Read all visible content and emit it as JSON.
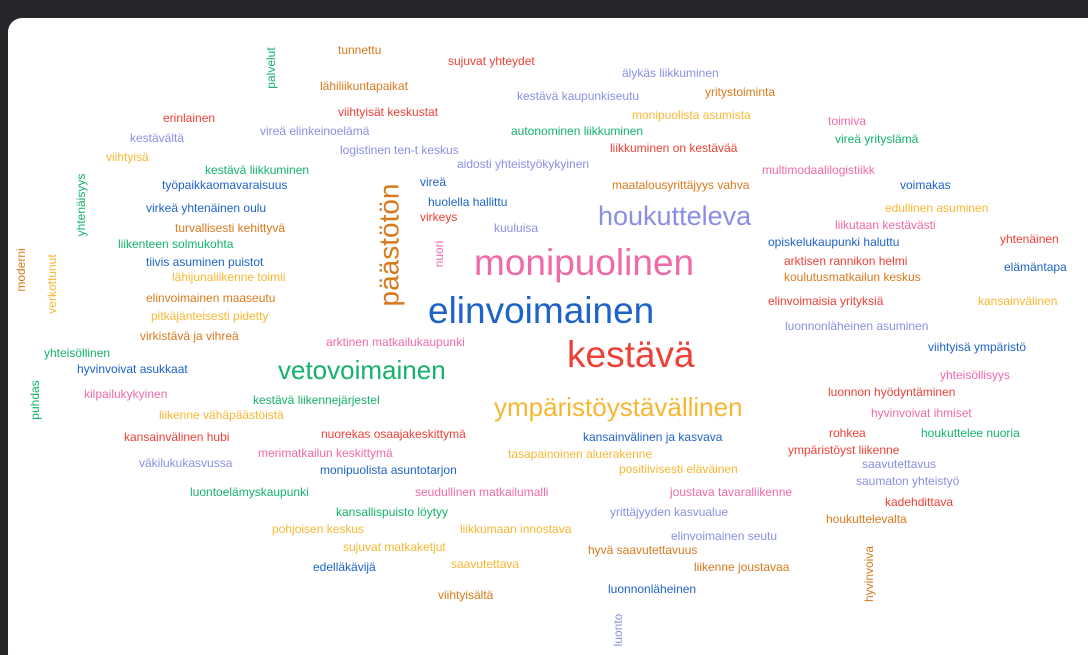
{
  "words": [
    {
      "text": "tunnettu",
      "color": "#d87a1c"
    },
    {
      "text": "sujuvat yhteydet",
      "color": "#ee4036"
    },
    {
      "text": "palvelut",
      "color": "#14b26c"
    },
    {
      "text": "lähiliikuntapaikat",
      "color": "#d87a1c"
    },
    {
      "text": "älykäs liikkuminen",
      "color": "#8b8fe3"
    },
    {
      "text": "kestävä kaupunkiseutu",
      "color": "#8b8fe3"
    },
    {
      "text": "yritystoiminta",
      "color": "#d87a1c"
    },
    {
      "text": "viihtyisät keskustat",
      "color": "#ee4036"
    },
    {
      "text": "erinlainen",
      "color": "#ee4036"
    },
    {
      "text": "monipuolista asumista",
      "color": "#f7b733"
    },
    {
      "text": "toimiva",
      "color": "#f06aa8"
    },
    {
      "text": "kestävältä",
      "color": "#8b8fe3"
    },
    {
      "text": "vireä elinkeinoelämä",
      "color": "#8b8fe3"
    },
    {
      "text": "autonominen liikkuminen",
      "color": "#14b26c"
    },
    {
      "text": "vireä yrityslämä",
      "color": "#14b26c"
    },
    {
      "text": "logistinen ten-t keskus",
      "color": "#8b8fe3"
    },
    {
      "text": "liikkuminen on kestävää",
      "color": "#ee4036"
    },
    {
      "text": "viihtyisä",
      "color": "#f7b733"
    },
    {
      "text": "aidosti yhteistyökykyinen",
      "color": "#8b8fe3"
    },
    {
      "text": "kestävä liikkuminen",
      "color": "#14b26c"
    },
    {
      "text": "multimodaalilogistiikk",
      "color": "#f06aa8"
    },
    {
      "text": "yhtenäisyys",
      "color": "#14b26c"
    },
    {
      "text": "työpaikkaomavaraisuus",
      "color": "#1d63c8"
    },
    {
      "text": "vireä",
      "color": "#1d63c8"
    },
    {
      "text": "maatalousyrittäjyys vahva",
      "color": "#d87a1c"
    },
    {
      "text": "voimakas",
      "color": "#1d63c8"
    },
    {
      "text": "päästötön",
      "color": "#d87a1c"
    },
    {
      "text": "huolella hallittu",
      "color": "#1d63c8"
    },
    {
      "text": "virkeä yhtenäinen oulu",
      "color": "#1d63c8"
    },
    {
      "text": "houkutteleva",
      "color": "#8b8fe3"
    },
    {
      "text": "edullinen asuminen",
      "color": "#f7b733"
    },
    {
      "text": "virkeys",
      "color": "#ee4036"
    },
    {
      "text": "kuuluisa",
      "color": "#8b8fe3"
    },
    {
      "text": "liikutaan kestävästi",
      "color": "#f06aa8"
    },
    {
      "text": "turvallisesti kehittyvä",
      "color": "#d87a1c"
    },
    {
      "text": "liikenteen solmukohta",
      "color": "#14b26c"
    },
    {
      "text": "nuori",
      "color": "#f06aa8"
    },
    {
      "text": "opiskelukaupunki haluttu",
      "color": "#1d63c8"
    },
    {
      "text": "yhtenäinen",
      "color": "#ee4036"
    },
    {
      "text": "moderni",
      "color": "#d87a1c"
    },
    {
      "text": "verkottunut",
      "color": "#f7b733"
    },
    {
      "text": "tiivis asuminen puistot",
      "color": "#1d63c8"
    },
    {
      "text": "monipuolinen",
      "color": "#f06aa8"
    },
    {
      "text": "arktisen rannikon helmi",
      "color": "#ee4036"
    },
    {
      "text": "elämäntapa",
      "color": "#1d63c8"
    },
    {
      "text": "lähijunaliikenne toimii",
      "color": "#f7b733"
    },
    {
      "text": "koulutusmatkailun keskus",
      "color": "#d87a1c"
    },
    {
      "text": "elinvoimainen maaseutu",
      "color": "#d87a1c"
    },
    {
      "text": "elinvoimaisia yrityksiä",
      "color": "#ee4036"
    },
    {
      "text": "kansainvälinen",
      "color": "#f7b733"
    },
    {
      "text": "pitkäjänteisesti pidetty",
      "color": "#f7b733"
    },
    {
      "text": "elinvoimainen",
      "color": "#1d63c8"
    },
    {
      "text": "luonnonläheinen asuminen",
      "color": "#8b8fe3"
    },
    {
      "text": "virkistävä ja vihreä",
      "color": "#d87a1c"
    },
    {
      "text": "arktinen matkailukaupunki",
      "color": "#f06aa8"
    },
    {
      "text": "yhteisöllinen",
      "color": "#14b26c"
    },
    {
      "text": "kestävä",
      "color": "#ee4036"
    },
    {
      "text": "viihtyisä ympäristö",
      "color": "#1d63c8"
    },
    {
      "text": "hyvinvoivat asukkaat",
      "color": "#1d63c8"
    },
    {
      "text": "vetovoimainen",
      "color": "#14b26c"
    },
    {
      "text": "yhteisöllisyys",
      "color": "#f06aa8"
    },
    {
      "text": "puhdas",
      "color": "#14b26c"
    },
    {
      "text": "luonnon hyödyntäminen",
      "color": "#ee4036"
    },
    {
      "text": "kilpailukykyinen",
      "color": "#f06aa8"
    },
    {
      "text": "kestävä liikennejärjestel",
      "color": "#14b26c"
    },
    {
      "text": "ympäristöystävällinen",
      "color": "#f7b733"
    },
    {
      "text": "liikenne vähäpäästöistä",
      "color": "#f7b733"
    },
    {
      "text": "hyvinvoivat ihmiset",
      "color": "#f06aa8"
    },
    {
      "text": "kansainvälinen hubi",
      "color": "#ee4036"
    },
    {
      "text": "nuorekas osaajakeskittymä",
      "color": "#ee4036"
    },
    {
      "text": "kansainvälinen ja kasvava",
      "color": "#1d63c8"
    },
    {
      "text": "rohkea",
      "color": "#ee4036"
    },
    {
      "text": "houkuttelee nuoria",
      "color": "#14b26c"
    },
    {
      "text": "ympäristöyst liikenne",
      "color": "#ee4036"
    },
    {
      "text": "merimatkailun keskittymä",
      "color": "#f06aa8"
    },
    {
      "text": "tasapainoinen aluerakenne",
      "color": "#f7b733"
    },
    {
      "text": "väkilukukasvussa",
      "color": "#8b8fe3"
    },
    {
      "text": "saavutettavus",
      "color": "#8b8fe3"
    },
    {
      "text": "monipuolista asuntotarjon",
      "color": "#1d63c8"
    },
    {
      "text": "positiivisesti eläväinen",
      "color": "#f7b733"
    },
    {
      "text": "saumaton yhteistyö",
      "color": "#8b8fe3"
    },
    {
      "text": "luontoelämyskaupunki",
      "color": "#14b26c"
    },
    {
      "text": "seudullinen matkailumalli",
      "color": "#f06aa8"
    },
    {
      "text": "joustava tavaraliikenne",
      "color": "#f06aa8"
    },
    {
      "text": "kadehdittava",
      "color": "#ee4036"
    },
    {
      "text": "kansallispuisto löytyy",
      "color": "#14b26c"
    },
    {
      "text": "yrittäjyyden kasvualue",
      "color": "#8b8fe3"
    },
    {
      "text": "houkuttelevalta",
      "color": "#d87a1c"
    },
    {
      "text": "pohjoisen keskus",
      "color": "#f7b733"
    },
    {
      "text": "liikkumaan innostava",
      "color": "#f7b733"
    },
    {
      "text": "elinvoimainen seutu",
      "color": "#8b8fe3"
    },
    {
      "text": "sujuvat matkaketjut",
      "color": "#f7b733"
    },
    {
      "text": "hyvä saavutettavuus",
      "color": "#d87a1c"
    },
    {
      "text": "hyvinvoiva",
      "color": "#d87a1c"
    },
    {
      "text": "saavutettava",
      "color": "#f7b733"
    },
    {
      "text": "edelläkävijä",
      "color": "#1d63c8"
    },
    {
      "text": "liikenne joustavaa",
      "color": "#d87a1c"
    },
    {
      "text": "viihtyisältä",
      "color": "#d87a1c"
    },
    {
      "text": "luonnonläheinen",
      "color": "#1d63c8"
    },
    {
      "text": "luonto",
      "color": "#8b8fe3"
    }
  ]
}
